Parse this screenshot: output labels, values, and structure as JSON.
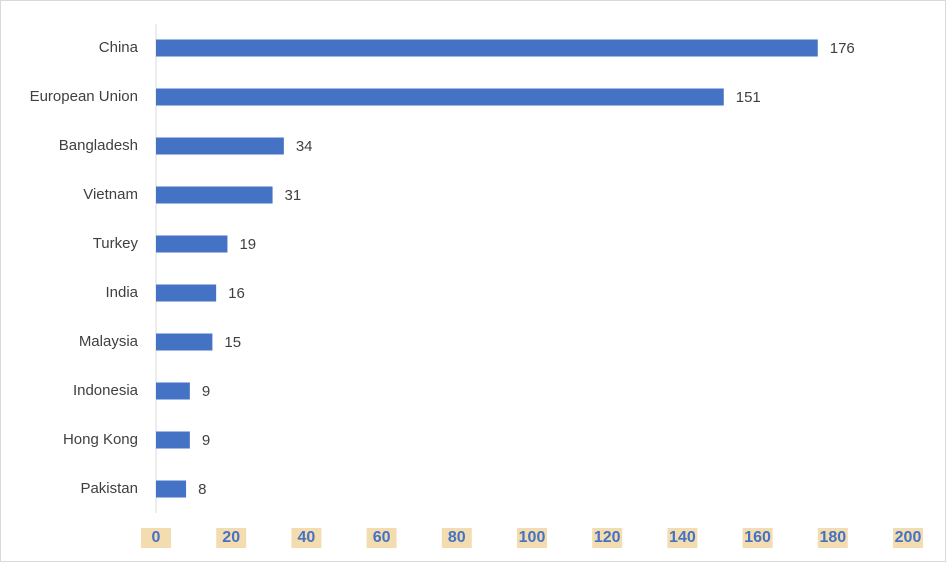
{
  "chart_data": {
    "type": "bar",
    "orientation": "horizontal",
    "categories": [
      "China",
      "European Union",
      "Bangladesh",
      "Vietnam",
      "Turkey",
      "India",
      "Malaysia",
      "Indonesia",
      "Hong Kong",
      "Pakistan"
    ],
    "values": [
      176,
      151,
      34,
      31,
      19,
      16,
      15,
      9,
      9,
      8
    ],
    "color": "#4472c4",
    "xlim": [
      0,
      200
    ],
    "xticks": [
      0,
      20,
      40,
      60,
      80,
      100,
      120,
      140,
      160,
      180,
      200
    ],
    "grid": false
  }
}
